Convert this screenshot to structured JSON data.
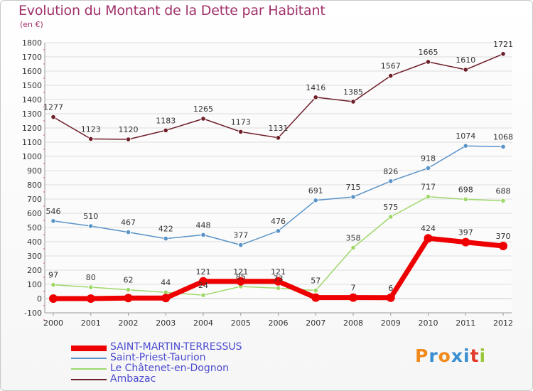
{
  "header": {
    "title": "Evolution du Montant de la Dette par Habitant",
    "unit": "(en €)"
  },
  "chart_data": {
    "type": "line",
    "title": "Evolution du Montant de la Dette par Habitant",
    "ylabel": "(en €)",
    "xlabel": "",
    "x": [
      "2000",
      "2001",
      "2002",
      "2003",
      "2004",
      "2005",
      "2006",
      "2007",
      "2008",
      "2009",
      "2010",
      "2011",
      "2012"
    ],
    "ylim": [
      -100,
      1800
    ],
    "yticks": [
      -100,
      0,
      100,
      200,
      300,
      400,
      500,
      600,
      700,
      800,
      900,
      1000,
      1100,
      1200,
      1300,
      1400,
      1500,
      1600,
      1700,
      1800
    ],
    "grid": true,
    "legend_position": "bottom-left",
    "series": [
      {
        "name": "SAINT-MARTIN-TERRESSUS",
        "color": "#ee0000",
        "values": [
          0,
          0,
          4,
          4,
          121,
          121,
          121,
          7,
          7,
          6,
          424,
          397,
          370
        ],
        "labels": [
          "",
          "",
          "",
          "",
          "121",
          "121",
          "121",
          "",
          "7",
          "6",
          "424",
          "397",
          "370"
        ]
      },
      {
        "name": "Saint-Priest-Taurion",
        "color": "#5a93c8",
        "values": [
          546,
          510,
          467,
          422,
          448,
          377,
          476,
          691,
          715,
          826,
          918,
          1074,
          1068
        ],
        "labels": [
          "546",
          "510",
          "467",
          "422",
          "448",
          "377",
          "476",
          "691",
          "715",
          "826",
          "918",
          "1074",
          "1068"
        ]
      },
      {
        "name": "Le Châtenet-en-Dognon",
        "color": "#9ed86a",
        "values": [
          97,
          80,
          62,
          44,
          24,
          85,
          73,
          57,
          358,
          575,
          717,
          698,
          688
        ],
        "labels": [
          "97",
          "80",
          "62",
          "44",
          "24",
          "85",
          "73",
          "57",
          "358",
          "575",
          "717",
          "698",
          "688"
        ]
      },
      {
        "name": "Ambazac",
        "color": "#6e1e28",
        "values": [
          1277,
          1123,
          1120,
          1183,
          1265,
          1173,
          1131,
          1416,
          1385,
          1567,
          1665,
          1610,
          1721
        ],
        "labels": [
          "1277",
          "1123",
          "1120",
          "1183",
          "1265",
          "1173",
          "1131",
          "1416",
          "1385",
          "1567",
          "1665",
          "1610",
          "1721"
        ]
      }
    ]
  },
  "logo": {
    "text": "Proxiti",
    "colors": [
      "#f08a1c",
      "#3a8fd0",
      "#f08a1c",
      "#3a8fd0",
      "#3a8fd0",
      "#e23a2a",
      "#9ac83a"
    ]
  }
}
